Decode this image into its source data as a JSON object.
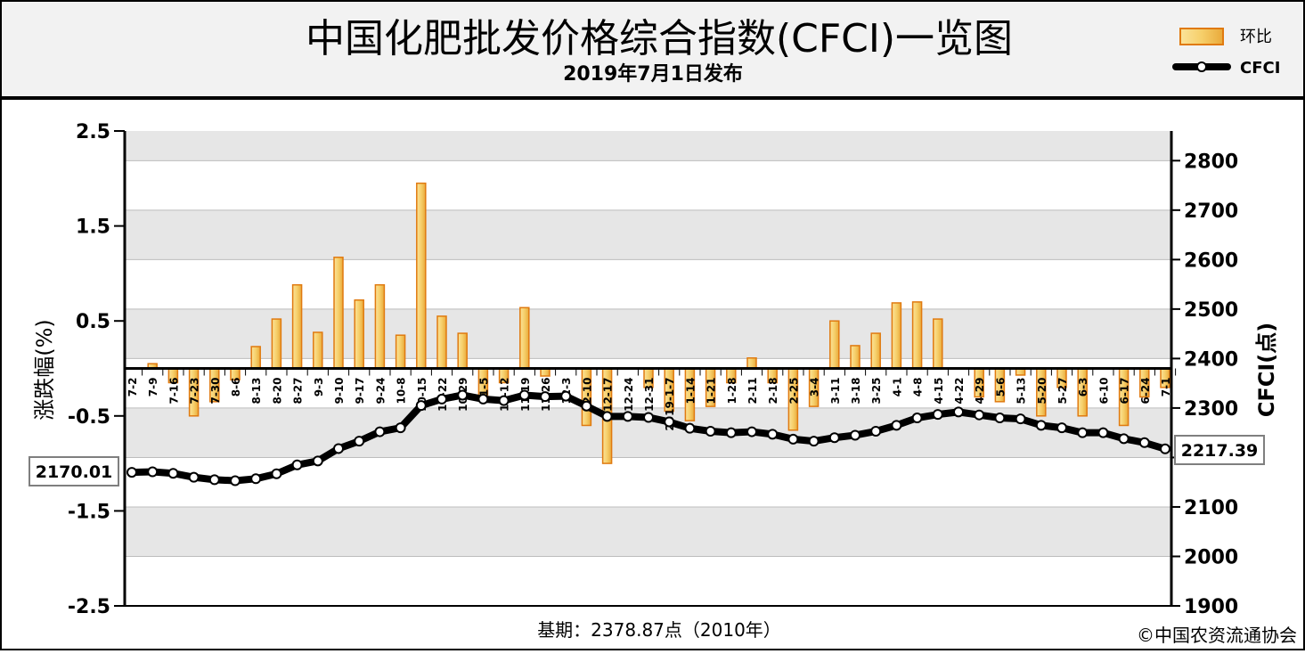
{
  "header": {
    "title": "中国化肥批发价格综合指数(CFCI)一览图",
    "subtitle": "2019年7月1日发布"
  },
  "legend": {
    "bar_label": "环比",
    "line_label": "CFCI"
  },
  "left_axis": {
    "title": "涨跌幅(%)",
    "ticks": [
      "2.5",
      "1.5",
      "0.5",
      "-0.5",
      "-1.5",
      "-2.5"
    ]
  },
  "right_axis": {
    "title": "CFCI(点)",
    "ticks": [
      "2800",
      "2700",
      "2600",
      "2500",
      "2400",
      "2300",
      "2200",
      "2100",
      "2000",
      "1900"
    ]
  },
  "callouts": {
    "start_value": "2170.01",
    "end_value": "2217.39"
  },
  "footer": {
    "base_note": "基期：2378.87点（2010年）",
    "copyright": "©中国农资流通协会"
  },
  "colors": {
    "bar_fill": "#f6cf6a",
    "bar_stroke": "#e07a10",
    "line": "#000000",
    "marker_fill": "#ffffff",
    "header_bg": "#f2f2f2",
    "band": "#e6e6e6"
  },
  "chart_data": {
    "type": "bar+line",
    "title": "中国化肥批发价格综合指数(CFCI)一览图",
    "subtitle": "2019年7月1日发布",
    "ylabel": "涨跌幅(%)",
    "ylabel_right": "CFCI(点)",
    "ylim": [
      -2.5,
      2.5
    ],
    "ylim_right": [
      1900,
      2860
    ],
    "grid": true,
    "legend_position": "top-right",
    "categories": [
      "7-2",
      "7-9",
      "7-16",
      "7-23",
      "7-30",
      "8-6",
      "8-13",
      "8-20",
      "8-27",
      "9-3",
      "9-10",
      "9-17",
      "9-24",
      "10-8",
      "10-15",
      "10-22",
      "10-29",
      "11-5",
      "11-12",
      "11-19",
      "11-26",
      "12-3",
      "12-10",
      "12-17",
      "12-24",
      "12-31",
      "2019-1-7",
      "1-14",
      "1-21",
      "1-28",
      "2-11",
      "2-18",
      "2-25",
      "3-4",
      "3-11",
      "3-18",
      "3-25",
      "4-1",
      "4-8",
      "4-15",
      "4-22",
      "4-29",
      "5-6",
      "5-13",
      "5-20",
      "5-27",
      "6-3",
      "6-10",
      "6-17",
      "6-24",
      "7-1"
    ],
    "series": [
      {
        "name": "环比",
        "axis": "left",
        "type": "bar",
        "values": [
          0,
          0.05,
          -0.15,
          -0.5,
          -0.35,
          -0.12,
          0.23,
          0.52,
          0.88,
          0.38,
          1.17,
          0.72,
          0.88,
          0.35,
          1.95,
          0.55,
          0.37,
          -0.3,
          -0.15,
          0.64,
          -0.08,
          0,
          -0.6,
          -1.0,
          0,
          -0.2,
          -0.45,
          -0.55,
          -0.4,
          -0.15,
          0.11,
          -0.15,
          -0.65,
          -0.4,
          0.5,
          0.24,
          0.37,
          0.69,
          0.7,
          0.52,
          0,
          -0.3,
          -0.35,
          -0.07,
          -0.5,
          -0.2,
          -0.5,
          0,
          -0.6,
          -0.3,
          -0.2
        ]
      },
      {
        "name": "CFCI",
        "axis": "right",
        "type": "line",
        "values": [
          2170.01,
          2171,
          2168,
          2160,
          2155,
          2153,
          2157,
          2167,
          2185,
          2193,
          2218,
          2233,
          2252,
          2260,
          2305,
          2318,
          2326,
          2318,
          2315,
          2326,
          2323,
          2324,
          2304,
          2283,
          2283,
          2281,
          2272,
          2259,
          2253,
          2250,
          2252,
          2247,
          2237,
          2233,
          2240,
          2245,
          2253,
          2265,
          2280,
          2287,
          2292,
          2286,
          2280,
          2278,
          2265,
          2260,
          2250,
          2250,
          2238,
          2230,
          2217.39
        ]
      }
    ],
    "annotations": [
      "2170.01",
      "2217.39"
    ],
    "footer": [
      "基期：2378.87点（2010年）",
      "©中国农资流通协会"
    ]
  }
}
